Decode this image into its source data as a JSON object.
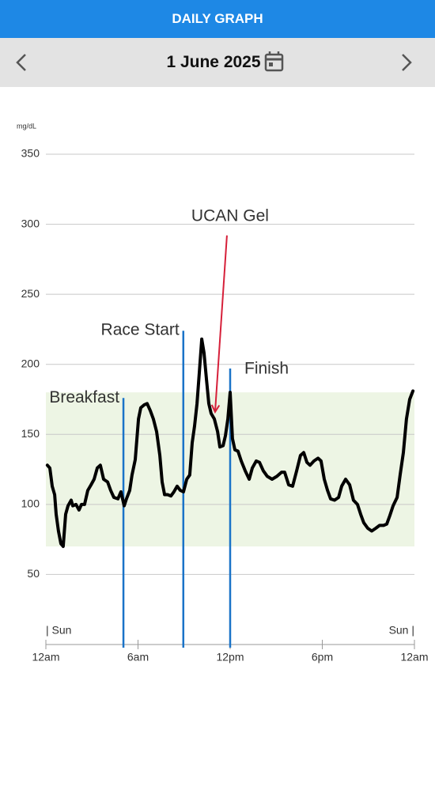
{
  "header": {
    "title": "DAILY GRAPH",
    "date": "1 June 2025"
  },
  "chart_data": {
    "type": "line",
    "y_label": "mg/dL",
    "day_start_label": "| Sun",
    "day_end_label": "Sun |",
    "ylim": [
      0,
      350
    ],
    "yticks": [
      50,
      100,
      150,
      200,
      250,
      300,
      350
    ],
    "xlim": [
      0,
      24
    ],
    "xticks": [
      {
        "value": 0,
        "label": "12am"
      },
      {
        "value": 6,
        "label": "6am"
      },
      {
        "value": 12,
        "label": "12pm"
      },
      {
        "value": 18,
        "label": "6pm"
      },
      {
        "value": 24,
        "label": "12am"
      }
    ],
    "grid": true,
    "target_range": [
      70,
      180
    ],
    "target_color": "#edf5e4",
    "color": "#000000",
    "x": [
      0.1,
      0.26,
      0.41,
      0.57,
      0.67,
      0.82,
      0.98,
      1.13,
      1.29,
      1.44,
      1.65,
      1.75,
      1.96,
      2.16,
      2.32,
      2.52,
      2.73,
      2.94,
      3.14,
      3.35,
      3.55,
      3.76,
      4.02,
      4.22,
      4.43,
      4.69,
      4.89,
      5.1,
      5.25,
      5.46,
      5.61,
      5.82,
      6.03,
      6.18,
      6.39,
      6.59,
      6.8,
      7.0,
      7.21,
      7.42,
      7.57,
      7.73,
      7.93,
      8.14,
      8.34,
      8.55,
      8.75,
      8.96,
      9.17,
      9.37,
      9.53,
      9.68,
      9.84,
      9.99,
      10.15,
      10.3,
      10.46,
      10.61,
      10.76,
      10.97,
      11.18,
      11.33,
      11.54,
      11.69,
      11.85,
      12.0,
      12.15,
      12.31,
      12.51,
      12.72,
      12.98,
      13.24,
      13.44,
      13.7,
      13.91,
      14.16,
      14.42,
      14.73,
      15.04,
      15.35,
      15.55,
      15.81,
      16.07,
      16.33,
      16.58,
      16.79,
      17.0,
      17.2,
      17.46,
      17.72,
      17.92,
      18.13,
      18.34,
      18.54,
      18.8,
      19.06,
      19.26,
      19.52,
      19.78,
      20.03,
      20.29,
      20.5,
      20.7,
      20.96,
      21.22,
      21.48,
      21.73,
      21.99,
      22.2,
      22.4,
      22.61,
      22.87,
      23.07,
      23.28,
      23.48,
      23.69,
      23.9
    ],
    "values": [
      128,
      126,
      113,
      107,
      93,
      81,
      72,
      70,
      93,
      99,
      103,
      99,
      100,
      96,
      100,
      100,
      110,
      114,
      118,
      126,
      128,
      118,
      116,
      110,
      105,
      104,
      109,
      99,
      104,
      110,
      121,
      132,
      161,
      169,
      171,
      172,
      167,
      161,
      152,
      135,
      116,
      107,
      107,
      106,
      109,
      113,
      110,
      109,
      118,
      121,
      144,
      156,
      172,
      194,
      218,
      208,
      189,
      172,
      165,
      161,
      152,
      141,
      142,
      149,
      161,
      180,
      147,
      139,
      138,
      131,
      124,
      118,
      126,
      131,
      130,
      124,
      120,
      118,
      120,
      123,
      123,
      114,
      113,
      124,
      135,
      137,
      130,
      128,
      131,
      133,
      131,
      118,
      110,
      104,
      103,
      105,
      113,
      118,
      114,
      103,
      100,
      93,
      87,
      83,
      81,
      83,
      85,
      85,
      86,
      92,
      99,
      105,
      121,
      137,
      161,
      175,
      181
    ],
    "event_color": "#1a73c8",
    "events": [
      {
        "label": "Breakfast",
        "x": 5.05,
        "top": 176
      },
      {
        "label": "Race Start",
        "x": 8.95,
        "top": 224
      },
      {
        "label": "Finish",
        "x": 12,
        "top": 197
      }
    ],
    "annotation": {
      "text": "UCAN Gel",
      "color": "#d6203a",
      "x_start": 11.79,
      "y_start": 292,
      "x_end": 11.02,
      "y_end": 166
    }
  }
}
